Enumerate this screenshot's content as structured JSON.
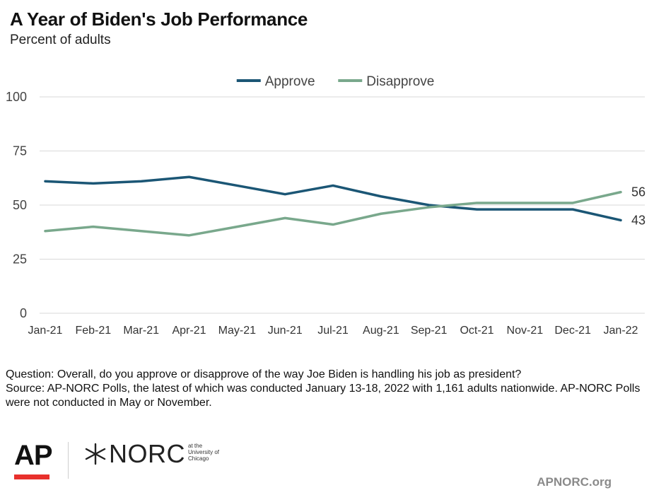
{
  "header": {
    "title": "A Year of Biden's Job Performance",
    "subtitle": "Percent of adults"
  },
  "chart_data": {
    "type": "line",
    "categories": [
      "Jan-21",
      "Feb-21",
      "Mar-21",
      "Apr-21",
      "May-21",
      "Jun-21",
      "Jul-21",
      "Aug-21",
      "Sep-21",
      "Oct-21",
      "Nov-21",
      "Dec-21",
      "Jan-22"
    ],
    "series": [
      {
        "name": "Approve",
        "color": "#1b5675",
        "values": [
          61,
          60,
          61,
          63,
          59,
          55,
          59,
          54,
          50,
          48,
          48,
          48,
          43
        ]
      },
      {
        "name": "Disapprove",
        "color": "#79a88c",
        "values": [
          38,
          40,
          38,
          36,
          40,
          44,
          41,
          46,
          49,
          51,
          51,
          51,
          56
        ]
      }
    ],
    "yticks": [
      0,
      25,
      50,
      75,
      100
    ],
    "ylim": [
      0,
      100
    ],
    "end_labels": {
      "Approve": "43",
      "Disapprove": "56"
    },
    "legend_position": "top-center",
    "grid": true
  },
  "notes": {
    "question": "Question: Overall, do you approve or disapprove of the way Joe Biden is handling his job as president?",
    "source": "Source:  AP-NORC Polls, the latest of which was conducted January 13-18, 2022 with 1,161 adults nationwide.  AP-NORC Polls were not conducted in May or November."
  },
  "branding": {
    "ap_logo": "AP",
    "ap_accent": "#e8302c",
    "norc_logo": "NORC",
    "norc_sub": [
      "at the",
      "University of",
      "Chicago"
    ],
    "site": "APNORC.org"
  }
}
